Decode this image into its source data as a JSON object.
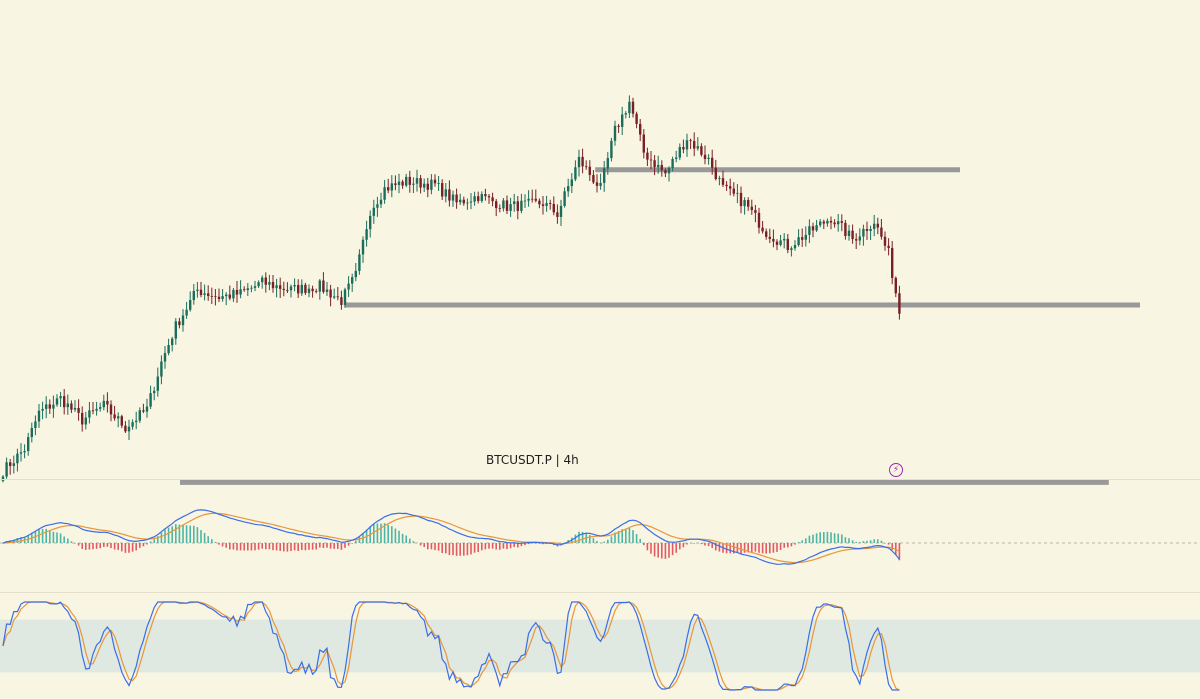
{
  "header": {
    "symbol": "BTCUSDT.P",
    "separator": "|",
    "interval": "4h"
  },
  "badge": {
    "icon": "lightning-icon",
    "glyph": "⚡",
    "color": "#9c27b0"
  },
  "colors": {
    "background": "#f8f5e2",
    "candle_up": "#1b6d5b",
    "candle_down": "#7a1f25",
    "level_line": "#999999",
    "macd_line": "#3b6ee6",
    "signal_line": "#e8963a",
    "hist_pos": "#4db6a4",
    "hist_neg": "#e45a63",
    "stoch_k": "#3b6ee6",
    "stoch_d": "#e8963a",
    "stoch_band": "#dfe8e1"
  },
  "chart_data": [
    {
      "type": "candlestick",
      "title": "",
      "price_path": {
        "start": 41,
        "end": 63,
        "waypoints": [
          [
            0,
            41
          ],
          [
            6,
            44
          ],
          [
            10,
            49
          ],
          [
            16,
            51
          ],
          [
            22,
            48
          ],
          [
            28,
            50
          ],
          [
            34,
            47
          ],
          [
            40,
            49.5
          ],
          [
            44,
            56
          ],
          [
            48,
            61
          ],
          [
            54,
            66
          ],
          [
            60,
            65
          ],
          [
            66,
            65.5
          ],
          [
            72,
            67
          ],
          [
            80,
            66
          ],
          [
            88,
            66.5
          ],
          [
            94,
            64.5
          ],
          [
            98,
            68
          ],
          [
            102,
            77
          ],
          [
            106,
            80
          ],
          [
            112,
            81
          ],
          [
            120,
            80.5
          ],
          [
            126,
            78
          ],
          [
            132,
            79
          ],
          [
            140,
            77.5
          ],
          [
            150,
            78
          ],
          [
            154,
            76.5
          ],
          [
            160,
            84
          ],
          [
            166,
            80
          ],
          [
            170,
            88
          ],
          [
            174,
            92
          ],
          [
            178,
            85
          ],
          [
            184,
            82
          ],
          [
            190,
            87
          ],
          [
            196,
            84
          ],
          [
            200,
            80
          ],
          [
            206,
            78
          ],
          [
            212,
            74
          ],
          [
            218,
            72
          ],
          [
            224,
            74
          ],
          [
            230,
            76
          ],
          [
            236,
            73
          ],
          [
            242,
            75.5
          ],
          [
            246,
            71
          ],
          [
            249,
            63
          ]
        ]
      },
      "levels": [
        {
          "name": "resistance-upper",
          "price": 82.6,
          "from": 0.496,
          "to": 0.8
        },
        {
          "name": "support-middle",
          "price": 63.9,
          "from": 0.287,
          "to": 0.95
        },
        {
          "name": "support-lower",
          "price": 39.4,
          "from": 0.15,
          "to": 0.924
        }
      ]
    },
    {
      "type": "line",
      "title": "",
      "series": [
        {
          "role": "macd"
        },
        {
          "role": "signal"
        },
        {
          "role": "histogram"
        }
      ]
    },
    {
      "type": "line",
      "title": "",
      "series": [
        {
          "role": "stoch-k"
        },
        {
          "role": "stoch-d"
        }
      ],
      "ylim": [
        0,
        100
      ],
      "band": [
        20,
        80
      ]
    }
  ]
}
